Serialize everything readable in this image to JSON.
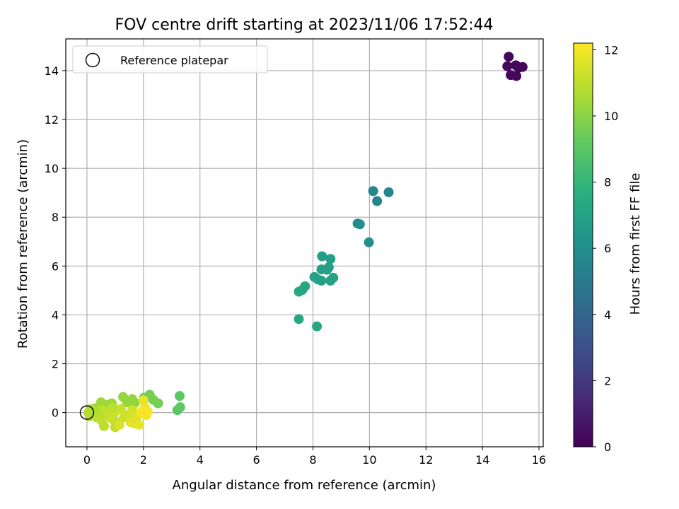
{
  "chart_data": {
    "type": "scatter",
    "title": "FOV centre drift starting at 2023/11/06 17:52:44",
    "xlabel": "Angular distance from reference (arcmin)",
    "ylabel": "Rotation from reference (arcmin)",
    "xlim": [
      -0.75,
      16.15
    ],
    "ylim": [
      -1.4,
      15.3
    ],
    "x_ticks": [
      "0",
      "2",
      "4",
      "6",
      "8",
      "10",
      "12",
      "14",
      "16"
    ],
    "y_ticks": [
      "0",
      "2",
      "4",
      "6",
      "8",
      "10",
      "12",
      "14"
    ],
    "grid": true,
    "legend": {
      "placement": "top-left",
      "entries": [
        "Reference platepar"
      ]
    },
    "reference_point": {
      "x": 0,
      "y": 0
    },
    "colorbar": {
      "label": "Hours from first FF file",
      "range": [
        0,
        12.2
      ],
      "ticks": [
        "0",
        "2",
        "4",
        "6",
        "8",
        "10",
        "12"
      ],
      "colormap": "viridis"
    },
    "points": [
      {
        "x": 14.93,
        "y": 14.57,
        "h": 0.2
      },
      {
        "x": 14.88,
        "y": 14.18,
        "h": 0.2
      },
      {
        "x": 15.18,
        "y": 14.22,
        "h": 0.2
      },
      {
        "x": 15.28,
        "y": 14.12,
        "h": 0.2
      },
      {
        "x": 15.42,
        "y": 14.15,
        "h": 0.2
      },
      {
        "x": 15.0,
        "y": 13.82,
        "h": 0.2
      },
      {
        "x": 15.2,
        "y": 13.78,
        "h": 0.2
      },
      {
        "x": 10.13,
        "y": 9.07,
        "h": 5.6
      },
      {
        "x": 10.68,
        "y": 9.02,
        "h": 5.6
      },
      {
        "x": 10.27,
        "y": 8.66,
        "h": 5.6
      },
      {
        "x": 9.58,
        "y": 7.74,
        "h": 5.9
      },
      {
        "x": 9.66,
        "y": 7.71,
        "h": 5.9
      },
      {
        "x": 9.98,
        "y": 6.97,
        "h": 6.0
      },
      {
        "x": 8.32,
        "y": 6.4,
        "h": 6.8
      },
      {
        "x": 8.62,
        "y": 6.29,
        "h": 6.8
      },
      {
        "x": 8.3,
        "y": 5.86,
        "h": 6.9
      },
      {
        "x": 8.5,
        "y": 5.85,
        "h": 6.9
      },
      {
        "x": 8.56,
        "y": 5.95,
        "h": 6.9
      },
      {
        "x": 8.05,
        "y": 5.55,
        "h": 7.0
      },
      {
        "x": 8.18,
        "y": 5.45,
        "h": 7.0
      },
      {
        "x": 8.3,
        "y": 5.4,
        "h": 7.0
      },
      {
        "x": 8.62,
        "y": 5.4,
        "h": 7.0
      },
      {
        "x": 8.72,
        "y": 5.52,
        "h": 7.0
      },
      {
        "x": 7.5,
        "y": 4.95,
        "h": 7.2
      },
      {
        "x": 7.62,
        "y": 5.02,
        "h": 7.2
      },
      {
        "x": 7.72,
        "y": 5.17,
        "h": 7.2
      },
      {
        "x": 7.5,
        "y": 3.83,
        "h": 7.3
      },
      {
        "x": 8.14,
        "y": 3.53,
        "h": 7.3
      },
      {
        "x": 3.28,
        "y": 0.68,
        "h": 9.1
      },
      {
        "x": 3.3,
        "y": 0.22,
        "h": 9.1
      },
      {
        "x": 3.2,
        "y": 0.1,
        "h": 9.1
      },
      {
        "x": 2.22,
        "y": 0.73,
        "h": 9.6
      },
      {
        "x": 2.02,
        "y": 0.61,
        "h": 9.6
      },
      {
        "x": 2.35,
        "y": 0.52,
        "h": 9.6
      },
      {
        "x": 2.52,
        "y": 0.38,
        "h": 9.6
      },
      {
        "x": 1.28,
        "y": 0.64,
        "h": 10.2
      },
      {
        "x": 1.6,
        "y": 0.55,
        "h": 10.2
      },
      {
        "x": 1.7,
        "y": 0.4,
        "h": 10.2
      },
      {
        "x": 1.42,
        "y": 0.42,
        "h": 10.2
      },
      {
        "x": 0.5,
        "y": 0.42,
        "h": 10.4
      },
      {
        "x": 0.88,
        "y": 0.38,
        "h": 10.4
      },
      {
        "x": 0.7,
        "y": 0.32,
        "h": 10.4
      },
      {
        "x": 0.3,
        "y": 0.18,
        "h": 10.5
      },
      {
        "x": 0.12,
        "y": 0.14,
        "h": 10.5
      },
      {
        "x": 0.05,
        "y": 0.0,
        "h": 10.8
      },
      {
        "x": 0.1,
        "y": -0.15,
        "h": 10.8
      },
      {
        "x": 0.2,
        "y": -0.05,
        "h": 10.8
      },
      {
        "x": 0.35,
        "y": -0.2,
        "h": 10.9
      },
      {
        "x": 0.5,
        "y": -0.3,
        "h": 11.0
      },
      {
        "x": 0.6,
        "y": -0.55,
        "h": 11.0
      },
      {
        "x": 0.55,
        "y": 0.1,
        "h": 11.0
      },
      {
        "x": 0.75,
        "y": -0.1,
        "h": 11.0
      },
      {
        "x": 0.95,
        "y": -0.3,
        "h": 11.1
      },
      {
        "x": 1.0,
        "y": -0.6,
        "h": 11.1
      },
      {
        "x": 1.1,
        "y": -0.45,
        "h": 11.1
      },
      {
        "x": 1.0,
        "y": 0.05,
        "h": 11.2
      },
      {
        "x": 1.2,
        "y": 0.15,
        "h": 11.2
      },
      {
        "x": 1.3,
        "y": -0.2,
        "h": 11.3
      },
      {
        "x": 1.45,
        "y": -0.1,
        "h": 11.3
      },
      {
        "x": 1.6,
        "y": 0.1,
        "h": 11.4
      },
      {
        "x": 1.55,
        "y": -0.4,
        "h": 11.6
      },
      {
        "x": 1.7,
        "y": -0.45,
        "h": 11.7
      },
      {
        "x": 1.75,
        "y": -0.25,
        "h": 11.6
      },
      {
        "x": 1.85,
        "y": -0.5,
        "h": 11.8
      },
      {
        "x": 1.9,
        "y": 0.0,
        "h": 11.9
      },
      {
        "x": 2.0,
        "y": 0.5,
        "h": 11.8
      },
      {
        "x": 2.05,
        "y": 0.2,
        "h": 11.9
      },
      {
        "x": 2.1,
        "y": -0.1,
        "h": 12.0
      },
      {
        "x": 1.95,
        "y": 0.05,
        "h": 12.1
      },
      {
        "x": 2.15,
        "y": 0.05,
        "h": 12.1
      },
      {
        "x": 0.8,
        "y": -0.2,
        "h": 11.2
      },
      {
        "x": 0.65,
        "y": 0.0,
        "h": 11.1
      },
      {
        "x": 0.9,
        "y": 0.2,
        "h": 11.0
      },
      {
        "x": 0.45,
        "y": -0.1,
        "h": 10.9
      },
      {
        "x": 0.3,
        "y": 0.05,
        "h": 10.7
      },
      {
        "x": 1.15,
        "y": -0.5,
        "h": 11.5
      }
    ]
  }
}
